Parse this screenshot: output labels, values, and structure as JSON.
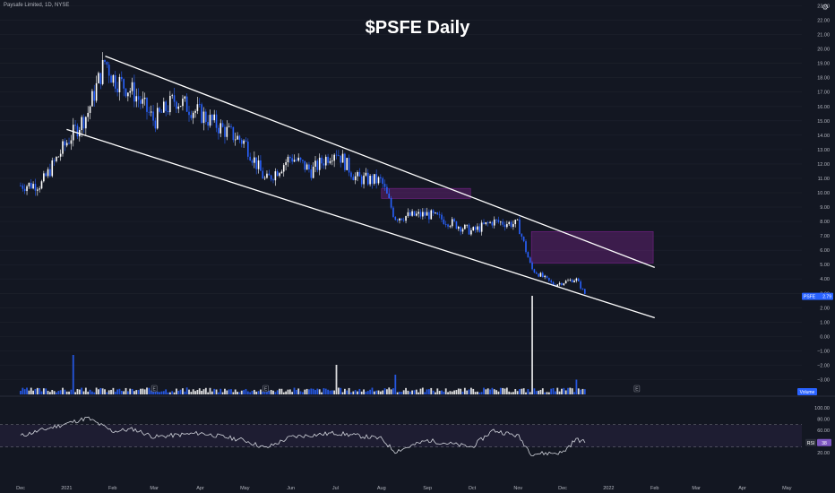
{
  "header": {
    "symbol_label": "Paysafe Limited, 1D, NYSE"
  },
  "title": "$PSFE Daily",
  "icons": {
    "settings": "gear-icon"
  },
  "colors": {
    "background": "#131722",
    "up_candle": "#ffffff",
    "down_candle": "#2962ff",
    "channel_line": "#ffffff",
    "supply_zone": "#9c27b0",
    "rsi_line": "#d1d4dc",
    "rsi_band": "#7e57c2",
    "price_badge": "#2962ff"
  },
  "price_axis": {
    "ticks": [
      "23.00",
      "22.00",
      "21.00",
      "20.00",
      "19.00",
      "18.00",
      "17.00",
      "16.00",
      "15.00",
      "14.00",
      "13.00",
      "12.00",
      "11.00",
      "10.00",
      "9.00",
      "8.00",
      "7.00",
      "6.00",
      "5.00",
      "4.00",
      "3.00",
      "2.00",
      "1.00",
      "0.00",
      "−1.00",
      "−2.00",
      "−3.00"
    ],
    "price_label": "PSFE",
    "price_value": "2.79",
    "volume_label": "Volume"
  },
  "rsi_axis": {
    "ticks": [
      "100.00",
      "80.00",
      "60.00",
      "40.00",
      "20.00"
    ],
    "label": "RSI",
    "value": "38"
  },
  "time_axis": {
    "labels": [
      "Dec",
      "2021",
      "Feb",
      "Mar",
      "Apr",
      "May",
      "Jun",
      "Jul",
      "Aug",
      "Sep",
      "Oct",
      "Nov",
      "Dec",
      "2022",
      "Feb",
      "Mar",
      "Apr",
      "May"
    ]
  },
  "markers": {
    "earnings": "E"
  },
  "chart_data": {
    "type": "candlestick",
    "title": "$PSFE Daily",
    "ylim": [
      -3.5,
      23.2
    ],
    "price_points": [
      {
        "date": "2020-12-01",
        "close": 10.5
      },
      {
        "date": "2020-12-15",
        "close": 10.6
      },
      {
        "date": "2021-01-01",
        "close": 13.5
      },
      {
        "date": "2021-01-15",
        "close": 15.5
      },
      {
        "date": "2021-01-27",
        "close": 19.2
      },
      {
        "date": "2021-02-01",
        "close": 18.0
      },
      {
        "date": "2021-02-15",
        "close": 17.0
      },
      {
        "date": "2021-03-01",
        "close": 15.0
      },
      {
        "date": "2021-03-15",
        "close": 16.5
      },
      {
        "date": "2021-04-01",
        "close": 15.5
      },
      {
        "date": "2021-04-15",
        "close": 14.5
      },
      {
        "date": "2021-05-01",
        "close": 13.5
      },
      {
        "date": "2021-05-15",
        "close": 10.8
      },
      {
        "date": "2021-06-01",
        "close": 12.5
      },
      {
        "date": "2021-06-15",
        "close": 11.5
      },
      {
        "date": "2021-07-01",
        "close": 13.0
      },
      {
        "date": "2021-07-15",
        "close": 11.0
      },
      {
        "date": "2021-08-01",
        "close": 10.8
      },
      {
        "date": "2021-08-10",
        "close": 8.3
      },
      {
        "date": "2021-09-01",
        "close": 8.5
      },
      {
        "date": "2021-09-15",
        "close": 8.0
      },
      {
        "date": "2021-10-01",
        "close": 7.3
      },
      {
        "date": "2021-10-15",
        "close": 8.0
      },
      {
        "date": "2021-11-01",
        "close": 7.8
      },
      {
        "date": "2021-11-10",
        "close": 4.7
      },
      {
        "date": "2021-11-25",
        "close": 3.6
      },
      {
        "date": "2021-12-10",
        "close": 4.0
      },
      {
        "date": "2021-12-17",
        "close": 2.79
      }
    ],
    "channel": {
      "upper": {
        "from": {
          "date": "2021-01-27",
          "price": 19.5
        },
        "to": {
          "date": "2022-02-01",
          "price": 4.8
        }
      },
      "lower": {
        "from": {
          "date": "2021-01-01",
          "price": 14.4
        },
        "to": {
          "date": "2022-02-01",
          "price": 1.3
        }
      }
    },
    "zones": [
      {
        "from": "2021-08-01",
        "to": "2021-09-30",
        "low": 9.6,
        "high": 10.3
      },
      {
        "from": "2021-11-10",
        "to": "2022-01-31",
        "low": 5.1,
        "high": 7.3
      }
    ],
    "volume_spikes": [
      {
        "date": "2021-01-05",
        "relative": 0.4
      },
      {
        "date": "2021-07-01",
        "relative": 0.3
      },
      {
        "date": "2021-08-10",
        "relative": 0.2
      },
      {
        "date": "2021-11-10",
        "relative": 1.0
      },
      {
        "date": "2021-12-10",
        "relative": 0.15
      }
    ],
    "rsi": {
      "band": [
        30,
        70
      ],
      "points": [
        {
          "date": "2020-12-01",
          "v": 50
        },
        {
          "date": "2021-01-15",
          "v": 82
        },
        {
          "date": "2021-02-01",
          "v": 58
        },
        {
          "date": "2021-02-15",
          "v": 62
        },
        {
          "date": "2021-03-01",
          "v": 48
        },
        {
          "date": "2021-04-01",
          "v": 55
        },
        {
          "date": "2021-05-01",
          "v": 42
        },
        {
          "date": "2021-05-15",
          "v": 28
        },
        {
          "date": "2021-06-01",
          "v": 48
        },
        {
          "date": "2021-07-01",
          "v": 55
        },
        {
          "date": "2021-08-01",
          "v": 45
        },
        {
          "date": "2021-08-10",
          "v": 22
        },
        {
          "date": "2021-09-01",
          "v": 42
        },
        {
          "date": "2021-10-01",
          "v": 30
        },
        {
          "date": "2021-10-15",
          "v": 60
        },
        {
          "date": "2021-11-01",
          "v": 50
        },
        {
          "date": "2021-11-10",
          "v": 18
        },
        {
          "date": "2021-12-01",
          "v": 20
        },
        {
          "date": "2021-12-10",
          "v": 44
        },
        {
          "date": "2021-12-17",
          "v": 38
        }
      ]
    }
  }
}
